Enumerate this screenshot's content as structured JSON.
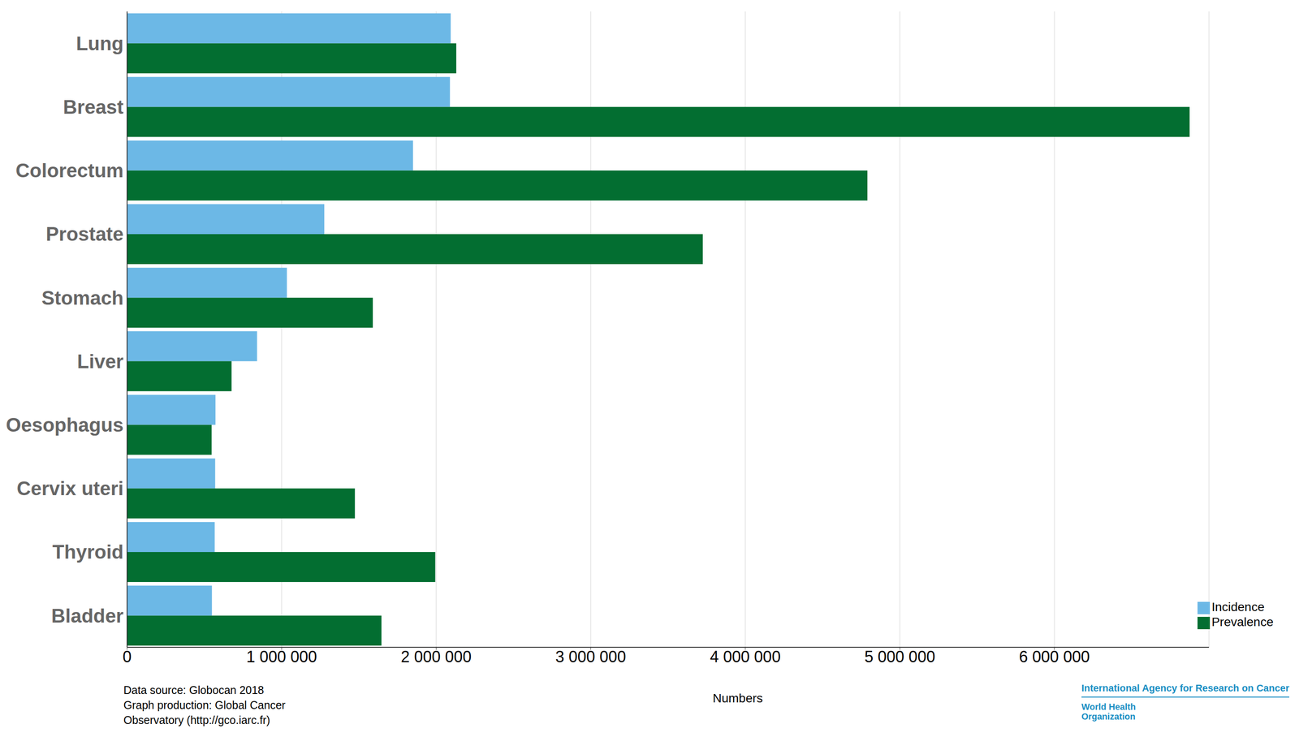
{
  "chart_data": {
    "type": "bar",
    "orientation": "horizontal",
    "categories": [
      "Lung",
      "Breast",
      "Colorectum",
      "Prostate",
      "Stomach",
      "Liver",
      "Oesophagus",
      "Cervix uteri",
      "Thyroid",
      "Bladder"
    ],
    "series": [
      {
        "name": "Incidence",
        "color": "#6cb8e6",
        "values": [
          2094000,
          2089000,
          1850000,
          1276000,
          1034000,
          841000,
          572000,
          570000,
          567000,
          549000
        ]
      },
      {
        "name": "Prevalence",
        "color": "#036e31",
        "values": [
          2130000,
          6875000,
          4790000,
          3725000,
          1590000,
          676000,
          547000,
          1474000,
          1994000,
          1646000
        ]
      }
    ],
    "xlabel": "Numbers",
    "xlim": [
      0,
      7000000
    ],
    "xticks": [
      0,
      {
        "value": 1000000,
        "label": "1 000 000"
      },
      {
        "value": 2000000,
        "label": "2 000 000"
      },
      {
        "value": 3000000,
        "label": "3 000 000"
      },
      {
        "value": 4000000,
        "label": "4 000 000"
      },
      {
        "value": 5000000,
        "label": "5 000 000"
      },
      {
        "value": 6000000,
        "label": "6 000 000"
      }
    ],
    "grid": true,
    "legend": "lower right",
    "annotations": [
      "Data source: Globocan 2018",
      "Graph production: Global Cancer Observatory (http://gco.iarc.fr)",
      "International Agency for Research on Cancer",
      "World Health Organization"
    ]
  }
}
